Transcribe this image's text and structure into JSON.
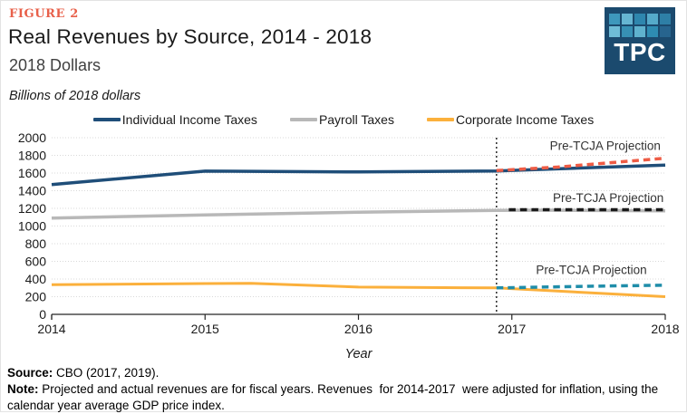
{
  "figure_label": "FIGURE 2",
  "header": {
    "title": "Real Revenues by Source, 2014 - 2018",
    "subtitle": "2018 Dollars",
    "units_label": "Billions of 2018 dollars"
  },
  "logo": {
    "text": "TPC",
    "background": "#1B4A6E",
    "squares": [
      "#3E98BC",
      "#66B5D2",
      "#2E86AE",
      "#55AACA",
      "#2E7FA6",
      "#6FBCD6",
      "#3790B4",
      "#5FB2CE",
      "#2E8CB2",
      "#27648E"
    ]
  },
  "chart_data": {
    "type": "line",
    "title": "Real Revenues by Source, 2014 - 2018",
    "xlabel": "Year",
    "ylabel": "Billions of 2018 dollars",
    "xlim": [
      2014,
      2018
    ],
    "ylim": [
      0,
      2000
    ],
    "ytick_step": 200,
    "xticks": [
      2014,
      2015,
      2016,
      2017,
      2018
    ],
    "grid": "horizontal-dotted",
    "projection_divider_x": 2016.9,
    "axis_color": "#262626",
    "grid_color": "#D9D9D9",
    "series": [
      {
        "name": "Individual Income Taxes",
        "color": "#1F4E79",
        "style": "solid",
        "width": 3.5,
        "x": [
          2014,
          2015,
          2016,
          2016.9,
          2018
        ],
        "values": [
          1470,
          1622,
          1612,
          1624,
          1690
        ]
      },
      {
        "name": "Payroll Taxes",
        "color": "#B8B8B8",
        "style": "solid",
        "width": 3.5,
        "x": [
          2014,
          2015,
          2016,
          2016.9,
          2017.2,
          2018
        ],
        "values": [
          1090,
          1126,
          1156,
          1177,
          1180,
          1172
        ]
      },
      {
        "name": "Corporate Income Taxes",
        "color": "#FBB03C",
        "style": "solid",
        "width": 3,
        "x": [
          2014,
          2015,
          2015.3,
          2016,
          2016.9,
          2018
        ],
        "values": [
          335,
          349,
          352,
          309,
          299,
          200
        ]
      },
      {
        "name": "Individual Income Taxes Pre-TCJA Projection",
        "color": "#EE5C45",
        "style": "dashed",
        "width": 3.5,
        "x": [
          2016.9,
          2017.3,
          2017.65,
          2018
        ],
        "values": [
          1628,
          1668,
          1718,
          1768
        ]
      },
      {
        "name": "Payroll Taxes Pre-TCJA Projection",
        "color": "#1A1A1A",
        "style": "dashed",
        "width": 3.5,
        "x": [
          2016.98,
          2018
        ],
        "values": [
          1185,
          1185
        ]
      },
      {
        "name": "Corporate Income Taxes Pre-TCJA Projection",
        "color": "#1F8DA9",
        "style": "dashed",
        "width": 3.5,
        "x": [
          2016.9,
          2017.5,
          2018
        ],
        "values": [
          300,
          318,
          330
        ]
      }
    ],
    "annotations": [
      {
        "text": "Pre-TCJA Projection",
        "x": 2017.97,
        "y": 1860
      },
      {
        "text": "Pre-TCJA Projection",
        "x": 2017.99,
        "y": 1270
      },
      {
        "text": "Pre-TCJA Projection",
        "x": 2017.88,
        "y": 455
      }
    ],
    "legend": [
      {
        "label": "Individual Income Taxes",
        "color": "#1F4E79"
      },
      {
        "label": "Payroll Taxes",
        "color": "#B8B8B8"
      },
      {
        "label": "Corporate Income Taxes",
        "color": "#FBB03C"
      }
    ]
  },
  "footer": {
    "source_label": "Source:",
    "source_text": " CBO (2017, 2019).",
    "note_label": "Note:",
    "note_text": " Projected and actual revenues are for fiscal years. Revenues  for 2014-2017  were adjusted for inflation, using the calendar year average GDP price index."
  }
}
